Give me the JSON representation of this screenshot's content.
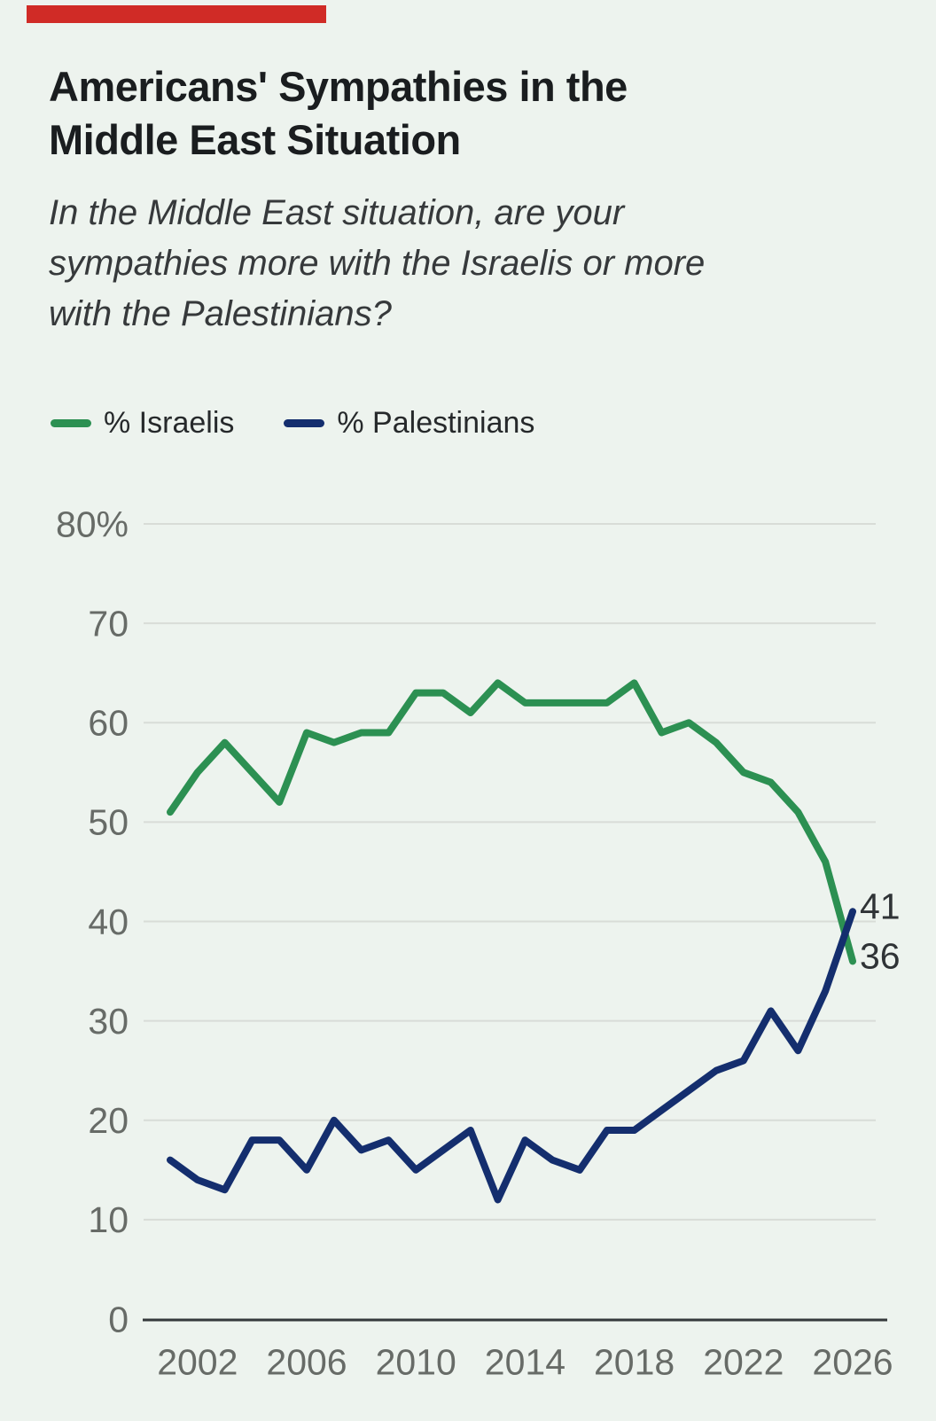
{
  "decorations": {
    "red_bar_color": "#d02b26"
  },
  "header": {
    "title_lines": [
      "Americans' Sympathies in the",
      "Middle East Situation"
    ],
    "subtitle_lines": [
      "In the Middle East situation, are your",
      "sympathies more with the Israelis or more",
      "with the Palestinians?"
    ]
  },
  "legend": {
    "items": [
      {
        "label": "% Israelis",
        "color": "#2c9052"
      },
      {
        "label": "% Palestinians",
        "color": "#142e6e"
      }
    ]
  },
  "chart_data": {
    "type": "line",
    "title": "Americans' Sympathies in the Middle East Situation",
    "x": [
      2001,
      2002,
      2003,
      2004,
      2005,
      2006,
      2007,
      2008,
      2009,
      2010,
      2011,
      2012,
      2013,
      2014,
      2015,
      2016,
      2017,
      2018,
      2019,
      2020,
      2021,
      2022,
      2023,
      2024,
      2025,
      2026
    ],
    "series": [
      {
        "name": "% Israelis",
        "color": "#2c9052",
        "values": [
          51,
          55,
          58,
          55,
          52,
          59,
          58,
          59,
          59,
          63,
          63,
          61,
          64,
          62,
          62,
          62,
          62,
          64,
          59,
          60,
          58,
          55,
          54,
          51,
          46,
          36
        ],
        "end_label": "36"
      },
      {
        "name": "% Palestinians",
        "color": "#142e6e",
        "values": [
          16,
          14,
          13,
          18,
          18,
          15,
          20,
          17,
          18,
          15,
          17,
          19,
          12,
          18,
          16,
          15,
          19,
          19,
          21,
          23,
          25,
          26,
          31,
          27,
          33,
          41
        ],
        "end_label": "41"
      }
    ],
    "xlabel": "",
    "ylabel": "",
    "ylim": [
      0,
      80
    ],
    "ytick_interval": 10,
    "ytick_labels": [
      "0",
      "10",
      "20",
      "30",
      "40",
      "50",
      "60",
      "70",
      "80%"
    ],
    "xticks": [
      2002,
      2006,
      2010,
      2014,
      2018,
      2022,
      2026
    ],
    "grid": true,
    "legend_position": "top",
    "axis_colors": {
      "tick_text": "#676b67",
      "gridline": "#d8dcd7",
      "baseline": "#34383b",
      "end_label_text": "#2f3336"
    }
  }
}
